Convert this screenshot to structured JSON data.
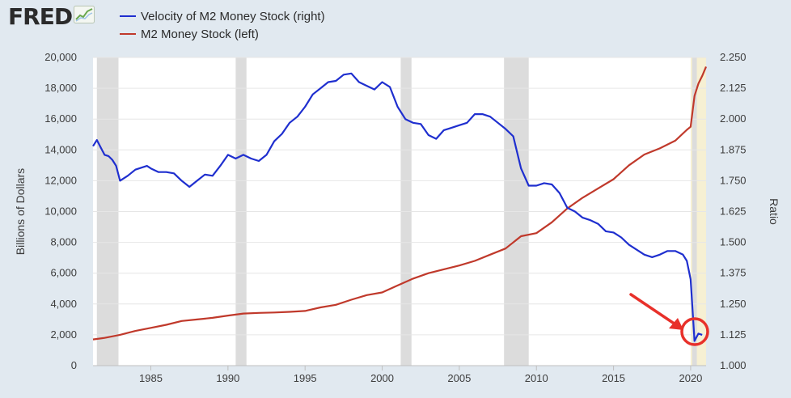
{
  "header": {
    "logo_text": "FRED",
    "logo_icon": "sparkline-chart-icon"
  },
  "chart_data": {
    "type": "line",
    "title": "",
    "xlabel": "",
    "ylabel": "Billions of Dollars",
    "ylabel_right": "Ratio",
    "xlim": [
      1981.25,
      2021.0
    ],
    "ylim": [
      0,
      20000
    ],
    "ylim_right": [
      1.0,
      2.25
    ],
    "x_ticks": [
      1985,
      1990,
      1995,
      2000,
      2005,
      2010,
      2015,
      2020
    ],
    "y_ticks_left": [
      "0",
      "2,000",
      "4,000",
      "6,000",
      "8,000",
      "10,000",
      "12,000",
      "14,000",
      "16,000",
      "18,000",
      "20,000"
    ],
    "y_ticks_right": [
      "1.000",
      "1.125",
      "1.250",
      "1.375",
      "1.500",
      "1.625",
      "1.750",
      "1.875",
      "2.000",
      "2.125",
      "2.250"
    ],
    "grid": "horizontal",
    "legend": "top-left",
    "recessions": [
      [
        1981.5,
        1982.9
      ],
      [
        1990.5,
        1991.2
      ],
      [
        2001.2,
        2001.9
      ],
      [
        2007.9,
        2009.5
      ],
      [
        2020.1,
        2020.4
      ]
    ],
    "highlight_region": [
      2020.0,
      2021.0
    ],
    "series": [
      {
        "name": "Velocity of M2 Money Stock (right)",
        "axis": "right",
        "color": "#1f2fcf",
        "x": [
          1981.25,
          1981.5,
          1981.75,
          1982.0,
          1982.25,
          1982.5,
          1982.75,
          1983.0,
          1983.5,
          1984.0,
          1984.5,
          1984.75,
          1985.0,
          1985.5,
          1986.0,
          1986.5,
          1987.0,
          1987.5,
          1988.0,
          1988.5,
          1989.0,
          1989.5,
          1990.0,
          1990.5,
          1991.0,
          1991.5,
          1992.0,
          1992.5,
          1993.0,
          1993.5,
          1994.0,
          1994.5,
          1995.0,
          1995.5,
          1996.0,
          1996.5,
          1997.0,
          1997.5,
          1998.0,
          1998.5,
          1999.0,
          1999.5,
          2000.0,
          2000.5,
          2001.0,
          2001.5,
          2002.0,
          2002.5,
          2003.0,
          2003.5,
          2004.0,
          2004.5,
          2005.0,
          2005.5,
          2006.0,
          2006.5,
          2007.0,
          2007.5,
          2008.0,
          2008.5,
          2009.0,
          2009.5,
          2010.0,
          2010.5,
          2011.0,
          2011.5,
          2012.0,
          2012.5,
          2013.0,
          2013.5,
          2014.0,
          2014.5,
          2015.0,
          2015.5,
          2016.0,
          2016.5,
          2017.0,
          2017.5,
          2018.0,
          2018.5,
          2019.0,
          2019.5,
          2019.75,
          2020.0,
          2020.25,
          2020.5,
          2020.75
        ],
        "y": [
          1.89,
          1.915,
          1.885,
          1.855,
          1.85,
          1.835,
          1.81,
          1.75,
          1.77,
          1.795,
          1.805,
          1.81,
          1.8,
          1.785,
          1.785,
          1.78,
          1.75,
          1.725,
          1.75,
          1.775,
          1.77,
          1.81,
          1.855,
          1.84,
          1.855,
          1.84,
          1.83,
          1.855,
          1.91,
          1.94,
          1.985,
          2.01,
          2.05,
          2.1,
          2.125,
          2.15,
          2.155,
          2.18,
          2.185,
          2.15,
          2.135,
          2.12,
          2.15,
          2.13,
          2.05,
          2.0,
          1.985,
          1.98,
          1.935,
          1.92,
          1.955,
          1.965,
          1.975,
          1.985,
          2.02,
          2.02,
          2.01,
          1.985,
          1.96,
          1.93,
          1.8,
          1.73,
          1.73,
          1.74,
          1.735,
          1.7,
          1.64,
          1.625,
          1.6,
          1.59,
          1.575,
          1.545,
          1.54,
          1.52,
          1.49,
          1.47,
          1.45,
          1.44,
          1.45,
          1.465,
          1.465,
          1.45,
          1.425,
          1.35,
          1.1,
          1.13,
          1.125
        ]
      },
      {
        "name": "M2 Money Stock (left)",
        "axis": "left",
        "color": "#c0392b",
        "x": [
          1981.25,
          1982.0,
          1983.0,
          1984.0,
          1985.0,
          1986.0,
          1987.0,
          1988.0,
          1989.0,
          1990.0,
          1991.0,
          1992.0,
          1993.0,
          1994.0,
          1995.0,
          1996.0,
          1997.0,
          1998.0,
          1999.0,
          2000.0,
          2001.0,
          2002.0,
          2003.0,
          2004.0,
          2005.0,
          2006.0,
          2007.0,
          2008.0,
          2009.0,
          2010.0,
          2011.0,
          2012.0,
          2013.0,
          2014.0,
          2015.0,
          2016.0,
          2017.0,
          2018.0,
          2019.0,
          2019.75,
          2020.0,
          2020.25,
          2020.5,
          2020.75,
          2021.0
        ],
        "y": [
          1700,
          1800,
          2000,
          2250,
          2450,
          2650,
          2900,
          3000,
          3100,
          3250,
          3380,
          3420,
          3450,
          3490,
          3550,
          3780,
          3950,
          4280,
          4580,
          4750,
          5200,
          5650,
          6000,
          6250,
          6500,
          6800,
          7200,
          7600,
          8400,
          8600,
          9300,
          10200,
          10900,
          11500,
          12100,
          13000,
          13700,
          14100,
          14600,
          15300,
          15500,
          17500,
          18300,
          18800,
          19400
        ]
      }
    ]
  }
}
